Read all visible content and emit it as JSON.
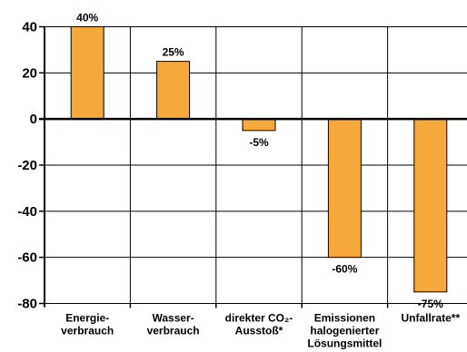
{
  "chart_data": {
    "type": "bar",
    "categories": [
      [
        "Energie-",
        "verbrauch"
      ],
      [
        "Wasser-",
        "verbrauch"
      ],
      [
        "direkter CO₂-",
        "Ausstoß*"
      ],
      [
        "Emissionen",
        "halogenierter",
        "Lösungsmittel"
      ],
      [
        "Unfallrate**"
      ]
    ],
    "values": [
      40,
      25,
      -5,
      -60,
      -75
    ],
    "data_labels": [
      "40%",
      "25%",
      "-5%",
      "-60%",
      "-75%"
    ],
    "ylim": [
      -80,
      40
    ],
    "yticks": [
      40,
      20,
      0,
      -20,
      -40,
      -60,
      -80
    ],
    "ytick_labels": [
      "40",
      "20",
      "0",
      "-20",
      "-40",
      "-60",
      "-80"
    ],
    "grid": true,
    "colors": {
      "bar_fill": "#F5A93A",
      "bar_stroke": "#000000",
      "grid": "#000000"
    }
  }
}
